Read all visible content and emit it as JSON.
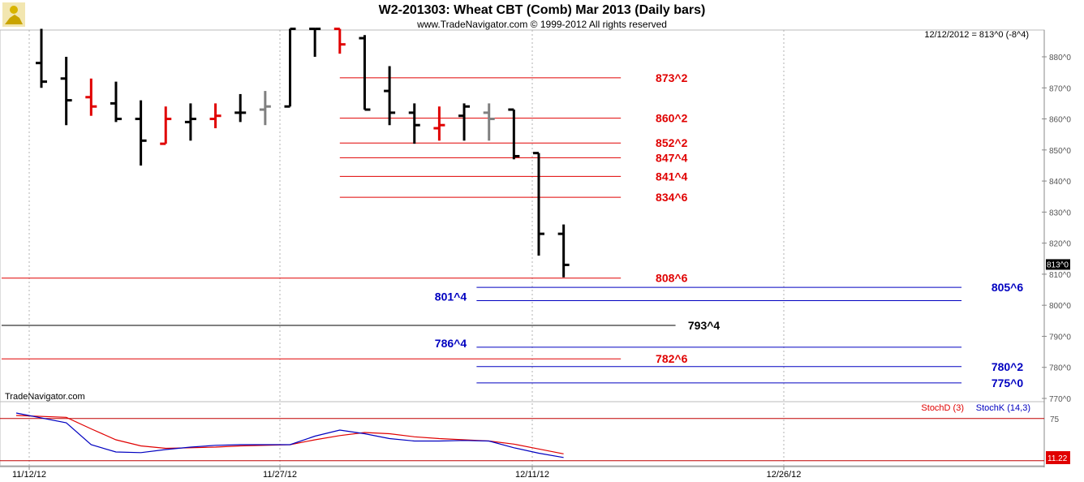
{
  "header": {
    "title": "W2-201303:  Wheat CBT (Comb) Mar 2013  (Daily bars)",
    "subtitle": "www.TradeNavigator.com © 1999-2012 All rights reserved",
    "info": "12/12/2012 = 813^0 (-8^4)",
    "watermark": "TradeNavigator.com"
  },
  "colors": {
    "up_bar": "#000000",
    "down_bar": "#e00000",
    "neutral_bar": "#808080",
    "red_level": "#e00000",
    "blue_level": "#0000c0",
    "black_level": "#000000",
    "stochD": "#e00000",
    "stochK": "#0000c0"
  },
  "chart_data": [
    {
      "type": "ohlc",
      "title": "W2-201303:  Wheat CBT (Comb) Mar 2013  (Daily bars)",
      "y_tick_labels": [
        "770^0",
        "780^0",
        "790^0",
        "800^0",
        "810^0",
        "820^0",
        "830^0",
        "840^0",
        "850^0",
        "860^0",
        "870^0",
        "880^0"
      ],
      "y_ticks": [
        770,
        780,
        790,
        800,
        810,
        820,
        830,
        840,
        850,
        860,
        870,
        880
      ],
      "ylim": [
        767,
        890
      ],
      "x_tick_labels": [
        "11/12/12",
        "11/27/12",
        "12/11/12",
        "12/26/12"
      ],
      "last_price_label": "813^0",
      "bars": [
        {
          "date": "11/12",
          "o": 878,
          "h": 889,
          "l": 870,
          "c": 872,
          "color": "black"
        },
        {
          "date": "11/13",
          "o": 873,
          "h": 880,
          "l": 858,
          "c": 866,
          "color": "black"
        },
        {
          "date": "11/14",
          "o": 867,
          "h": 873,
          "l": 861,
          "c": 864,
          "color": "red"
        },
        {
          "date": "11/15",
          "o": 865,
          "h": 872,
          "l": 859,
          "c": 860,
          "color": "black"
        },
        {
          "date": "11/16",
          "o": 860,
          "h": 866,
          "l": 845,
          "c": 853,
          "color": "black"
        },
        {
          "date": "11/19",
          "o": 852,
          "h": 864,
          "l": 852,
          "c": 860,
          "color": "red"
        },
        {
          "date": "11/20",
          "o": 859,
          "h": 865,
          "l": 853,
          "c": 860,
          "color": "black"
        },
        {
          "date": "11/21",
          "o": 860,
          "h": 865,
          "l": 857,
          "c": 861,
          "color": "red"
        },
        {
          "date": "11/23",
          "o": 862,
          "h": 868,
          "l": 859,
          "c": 862,
          "color": "black"
        },
        {
          "date": "11/26",
          "o": 863,
          "h": 869,
          "l": 858,
          "c": 864,
          "color": "gray"
        },
        {
          "date": "11/27",
          "o": 864,
          "h": 889,
          "l": 864,
          "c": 889,
          "color": "black"
        },
        {
          "date": "11/28",
          "o": 889,
          "h": 889,
          "l": 880,
          "c": 889,
          "color": "black"
        },
        {
          "date": "11/29",
          "o": 889,
          "h": 889,
          "l": 881,
          "c": 884,
          "color": "red"
        },
        {
          "date": "11/30",
          "o": 886,
          "h": 887,
          "l": 863,
          "c": 863,
          "color": "black"
        },
        {
          "date": "12/03",
          "o": 869,
          "h": 877,
          "l": 858,
          "c": 862,
          "color": "black"
        },
        {
          "date": "12/04",
          "o": 862,
          "h": 865,
          "l": 852,
          "c": 858,
          "color": "black"
        },
        {
          "date": "12/05",
          "o": 857,
          "h": 864,
          "l": 853,
          "c": 858,
          "color": "red"
        },
        {
          "date": "12/06",
          "o": 861,
          "h": 865,
          "l": 853,
          "c": 864,
          "color": "black"
        },
        {
          "date": "12/07",
          "o": 862,
          "h": 865,
          "l": 853,
          "c": 860,
          "color": "gray"
        },
        {
          "date": "12/10",
          "o": 863,
          "h": 863,
          "l": 847,
          "c": 848,
          "color": "black"
        },
        {
          "date": "12/11",
          "o": 849,
          "h": 849,
          "l": 816,
          "c": 823,
          "color": "black"
        },
        {
          "date": "12/12",
          "o": 823,
          "h": 826,
          "l": 809,
          "c": 813,
          "color": "black"
        }
      ],
      "levels": [
        {
          "label": "873^2",
          "value": 873.25,
          "color": "red",
          "from_bar": 12,
          "to_bar": 23.3,
          "label_bar": 24.7,
          "label_side": "right"
        },
        {
          "label": "860^2",
          "value": 860.25,
          "color": "red",
          "from_bar": 12,
          "to_bar": 23.3,
          "label_bar": 24.7,
          "label_side": "right"
        },
        {
          "label": "852^2",
          "value": 852.25,
          "color": "red",
          "from_bar": 12,
          "to_bar": 23.3,
          "label_bar": 24.7,
          "label_side": "right"
        },
        {
          "label": "847^4",
          "value": 847.5,
          "color": "red",
          "from_bar": 12,
          "to_bar": 23.3,
          "label_bar": 24.7,
          "label_side": "right"
        },
        {
          "label": "841^4",
          "value": 841.5,
          "color": "red",
          "from_bar": 12,
          "to_bar": 23.3,
          "label_bar": 24.7,
          "label_side": "right"
        },
        {
          "label": "834^6",
          "value": 834.75,
          "color": "red",
          "from_bar": 12,
          "to_bar": 23.3,
          "label_bar": 24.7,
          "label_side": "right"
        },
        {
          "label": "808^6",
          "value": 808.75,
          "color": "red",
          "from_bar": -1.6,
          "to_bar": 23.3,
          "label_bar": 24.7,
          "label_side": "right"
        },
        {
          "label": "805^6",
          "value": 805.75,
          "color": "blue",
          "from_bar": 17.5,
          "to_bar": 37,
          "label_bar": 38.2,
          "label_side": "right"
        },
        {
          "label": "801^4",
          "value": 801.5,
          "color": "blue",
          "from_bar": 17.5,
          "to_bar": 37,
          "label_bar": 17.1,
          "label_side": "left"
        },
        {
          "label": "793^4",
          "value": 793.5,
          "color": "black",
          "from_bar": -1.6,
          "to_bar": 25.5,
          "label_bar": 26.0,
          "label_side": "right"
        },
        {
          "label": "786^4",
          "value": 786.5,
          "color": "blue",
          "from_bar": 17.5,
          "to_bar": 37,
          "label_bar": 17.1,
          "label_side": "left"
        },
        {
          "label": "782^6",
          "value": 782.75,
          "color": "red",
          "from_bar": -1.6,
          "to_bar": 23.3,
          "label_bar": 24.7,
          "label_side": "right"
        },
        {
          "label": "780^2",
          "value": 780.25,
          "color": "blue",
          "from_bar": 17.5,
          "to_bar": 37,
          "label_bar": 38.2,
          "label_side": "right"
        },
        {
          "label": "775^0",
          "value": 775.0,
          "color": "blue",
          "from_bar": 17.5,
          "to_bar": 37,
          "label_bar": 38.2,
          "label_side": "right"
        }
      ]
    },
    {
      "type": "line",
      "legend": [
        "StochD (3)",
        "StochK (14,3)"
      ],
      "ylim": [
        0,
        100
      ],
      "y_tick_labels": [
        "75"
      ],
      "reference_line": 75,
      "lower_line": 11,
      "last_value_label": "11.22",
      "series": [
        {
          "name": "StochD (3)",
          "values": [
            80,
            77,
            58,
            40,
            30,
            26,
            27,
            28,
            30,
            31,
            32,
            40,
            47,
            52,
            50,
            45,
            42,
            40,
            38,
            33,
            25,
            17
          ]
        },
        {
          "name": "StochK (14,3)",
          "values": [
            84,
            68,
            32,
            20,
            19,
            24,
            28,
            31,
            32,
            32,
            32,
            46,
            56,
            50,
            42,
            38,
            38,
            39,
            38,
            27,
            18,
            11
          ]
        }
      ]
    }
  ]
}
